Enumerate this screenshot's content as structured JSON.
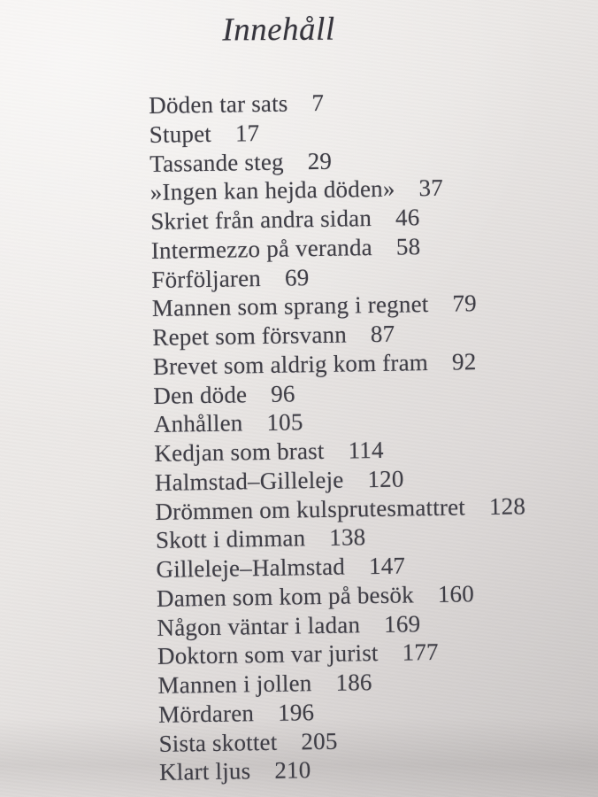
{
  "page": {
    "title": "Innehåll"
  },
  "toc": {
    "entries": [
      {
        "title": "Döden tar sats",
        "page": "7"
      },
      {
        "title": "Stupet",
        "page": "17"
      },
      {
        "title": "Tassande steg",
        "page": "29"
      },
      {
        "title": "»Ingen kan hejda döden»",
        "page": "37"
      },
      {
        "title": "Skriet från andra sidan",
        "page": "46"
      },
      {
        "title": "Intermezzo på veranda",
        "page": "58"
      },
      {
        "title": "Förföljaren",
        "page": "69"
      },
      {
        "title": "Mannen som sprang i regnet",
        "page": "79"
      },
      {
        "title": "Repet som försvann",
        "page": "87"
      },
      {
        "title": "Brevet som aldrig kom fram",
        "page": "92"
      },
      {
        "title": "Den döde",
        "page": "96"
      },
      {
        "title": "Anhållen",
        "page": "105"
      },
      {
        "title": "Kedjan som brast",
        "page": "114"
      },
      {
        "title": "Halmstad–Gilleleje",
        "page": "120"
      },
      {
        "title": "Drömmen om kulsprutesmattret",
        "page": "128"
      },
      {
        "title": "Skott i dimman",
        "page": "138"
      },
      {
        "title": "Gilleleje–Halmstad",
        "page": "147"
      },
      {
        "title": "Damen som kom på besök",
        "page": "160"
      },
      {
        "title": "Någon väntar i ladan",
        "page": "169"
      },
      {
        "title": "Doktorn som var jurist",
        "page": "177"
      },
      {
        "title": "Mannen i jollen",
        "page": "186"
      },
      {
        "title": "Mördaren",
        "page": "196"
      },
      {
        "title": "Sista skottet",
        "page": "205"
      },
      {
        "title": "Klart ljus",
        "page": "210"
      }
    ]
  },
  "colors": {
    "paper_light": "#f3f0ee",
    "paper_dark": "#c7c3c2",
    "ink": "#3f3e46"
  }
}
